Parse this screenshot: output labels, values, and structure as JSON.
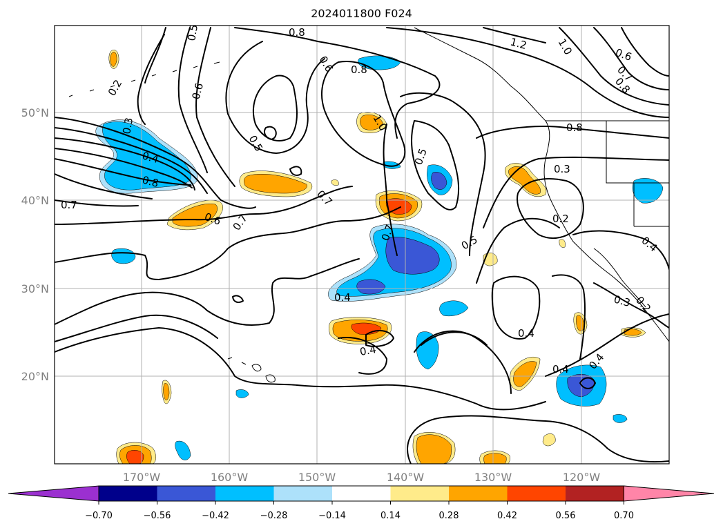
{
  "title": "2024011800 F024",
  "latitude_labels": [
    "50°N",
    "40°N",
    "30°N",
    "20°N"
  ],
  "longitude_labels": [
    "170°W",
    "160°W",
    "150°W",
    "140°W",
    "130°W",
    "120°W"
  ],
  "contour_labels": [
    "0.8",
    "0.5",
    "0.6",
    "0.2",
    "0.6",
    "0.8",
    "1.2",
    "1.0",
    "0.6",
    "0.7",
    "0.8",
    "0.3",
    "0.5",
    "1.0",
    "0.5",
    "0.4",
    "0.8",
    "0.8",
    "0.3",
    "0.7",
    "0.6",
    "0.7",
    "0.7",
    "0.2",
    "0.4",
    "0.5",
    "0.4",
    "0.4",
    "0.4",
    "0.3",
    "0.4",
    "0.4",
    "0.2",
    "0.7"
  ],
  "colorbar": {
    "ticks": [
      "−0.70",
      "−0.56",
      "−0.42",
      "−0.28",
      "−0.14",
      "0.14",
      "0.28",
      "0.42",
      "0.56",
      "0.70"
    ],
    "colors": [
      "#9b30d0",
      "#00008b",
      "#3a57d6",
      "#00bfff",
      "#ade1fa",
      "#ffffff",
      "#ffeb8a",
      "#ffa500",
      "#ff4500",
      "#b22222",
      "#ff85a8"
    ]
  },
  "colors": {
    "neg_strong": "#3a57d6",
    "neg_mid": "#00bfff",
    "neg_weak": "#ade1fa",
    "pos_weak": "#ffeb8a",
    "pos_mid": "#ffa500",
    "pos_strong": "#ff4500",
    "gridline": "#b0b0b0",
    "contour": "#000000"
  }
}
